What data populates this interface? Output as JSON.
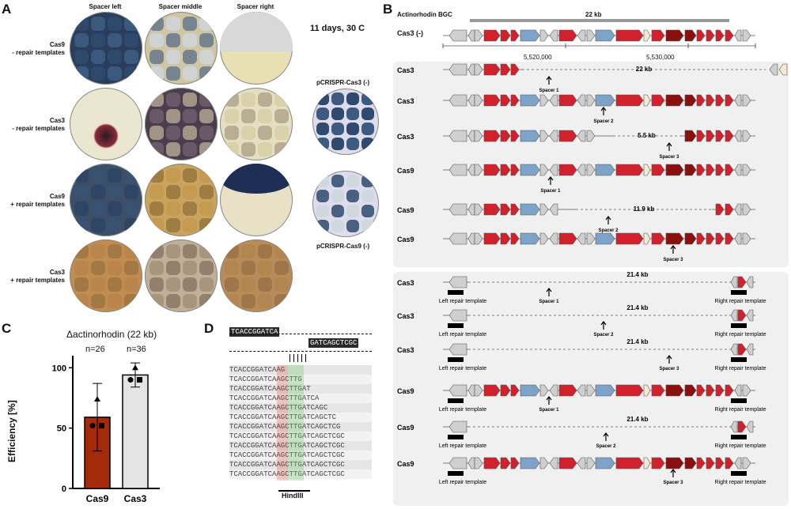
{
  "panelA": {
    "letter": "A",
    "columns": [
      "Spacer left",
      "Spacer middle",
      "Spacer right"
    ],
    "rows": [
      {
        "l1": "Cas9",
        "l2": "- repair templates"
      },
      {
        "l1": "Cas3",
        "l2": "- repair templates"
      },
      {
        "l1": "Cas9",
        "l2": "+ repair templates"
      },
      {
        "l1": "Cas3",
        "l2": "+ repair templates"
      }
    ],
    "condition": "11 days, 30 C",
    "ctrl1": "pCRISPR-Cas3 (-)",
    "ctrl2": "pCRISPR-Cas9 (-)"
  },
  "panelB": {
    "letter": "B",
    "bgc_label": "Actinorhodin BGC",
    "bgc_size": "22 kb",
    "ref_label": "Cas3 (-)",
    "coord1": "5,520,000",
    "coord2": "5,530,000",
    "upper_rows": [
      {
        "name": "Cas3",
        "gap": "22 kb",
        "spacer": "Spacer 1"
      },
      {
        "name": "Cas3",
        "gap": "",
        "spacer": "Spacer 2"
      },
      {
        "name": "Cas3",
        "gap": "5.5 kb",
        "spacer": "Spacer 3"
      },
      {
        "name": "Cas9",
        "gap": "",
        "spacer": "Spacer 1"
      },
      {
        "name": "Cas9",
        "gap": "11.9 kb",
        "spacer": "Spacer 2"
      },
      {
        "name": "Cas9",
        "gap": "",
        "spacer": "Spacer 3"
      }
    ],
    "lower_rows": [
      {
        "name": "Cas3",
        "gap": "21.4 kb",
        "spacer": "Spacer 1"
      },
      {
        "name": "Cas3",
        "gap": "21.4 kb",
        "spacer": "Spacer 2"
      },
      {
        "name": "Cas3",
        "gap": "21.4 kb",
        "spacer": "Spacer 3"
      },
      {
        "name": "Cas9",
        "gap": "",
        "spacer": "Spacer 1"
      },
      {
        "name": "Cas9",
        "gap": "21.4 kb",
        "spacer": "Spacer 2"
      },
      {
        "name": "Cas9",
        "gap": "",
        "spacer": "Spacer 3"
      }
    ],
    "left_template": "Left repair template",
    "right_template": "Right repair template"
  },
  "panelC": {
    "letter": "C",
    "title": "Δactinorhodin (22 kb)",
    "ylabel": "Efficiency [%]",
    "n_labels": [
      "n=26",
      "n=36"
    ],
    "colors": {
      "cas9": "#a52a0a",
      "cas3": "#e4e4e4"
    }
  },
  "chart_data": {
    "type": "bar",
    "title": "Δactinorhodin (22 kb)",
    "categories": [
      "Cas9",
      "Cas3"
    ],
    "values": [
      59,
      94
    ],
    "error": [
      [
        31,
        87
      ],
      [
        84,
        104
      ]
    ],
    "points": [
      [
        52,
        52,
        74
      ],
      [
        90,
        90,
        100
      ]
    ],
    "ylabel": "Efficiency [%]",
    "ylim": [
      0,
      110
    ],
    "yticks": [
      0,
      50,
      100
    ]
  },
  "panelD": {
    "letter": "D",
    "top_seq": "TCACCGGATCA",
    "top_seq2": "GATCAGCTCGC",
    "reads": [
      "TCACCGGATCAAG",
      "TCACCGGATCAAGCTTG",
      "TCACCGGATCAAGCTTGAT",
      "TCACCGGATCAAGCTTGATCA",
      "TCACCGGATCAAGCTTGATCAGC",
      "TCACCGGATCAAGCTTGATCAGCTC",
      "TCACCGGATCAAGCTTGATCAGCTCG",
      "TCACCGGATCAAGCTTGATCAGCTCGC",
      "TCACCGGATCAAGCTTGATCAGCTCGC",
      "TCACCGGATCAAGCTTGATCAGCTCGC",
      "TCACCGGATCAAGCTTGATCAGCTCGC",
      "TCACCGGATCAAGCTTGATCAGCTCGC"
    ],
    "site_label": "HindIII"
  }
}
